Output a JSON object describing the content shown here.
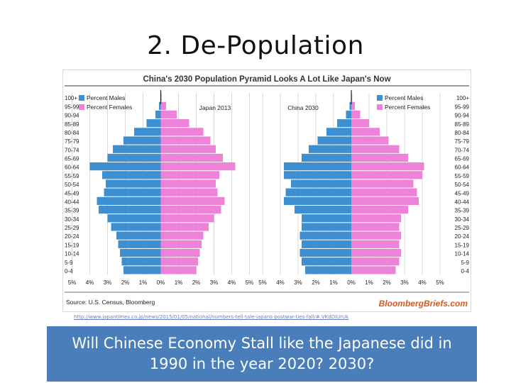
{
  "slide": {
    "title": "2.  De-Population",
    "source_url": "http://www.japantimes.co.jp/news/2015/01/05/national/numbers-tell-tale-japans-postwar-ties-fall/#.VKdDlUrUk",
    "question": "Will Chinese Economy Stall like the Japanese did in 1990 in the year 2020? 2030?"
  },
  "chart_header": {
    "title": "China's 2030 Population Pyramid Looks A Lot Like Japan's Now",
    "source": "Source: U.S. Census, Bloomberg",
    "brand": "BloombergBriefs.com"
  },
  "colors": {
    "males": "#3d8fd1",
    "females": "#ee82d8",
    "grid": "#bfbfbf",
    "question_bg": "#4a7ebb"
  },
  "chart_data": [
    {
      "type": "bar",
      "title": "Japan 2013",
      "categories": [
        "0-4",
        "5-9",
        "10-14",
        "15-19",
        "20-24",
        "25-29",
        "30-34",
        "35-39",
        "40-44",
        "45-49",
        "50-54",
        "55-59",
        "60-64",
        "65-69",
        "70-74",
        "75-79",
        "80-84",
        "85-89",
        "90-94",
        "95-99",
        "100+"
      ],
      "series": [
        {
          "name": "Percent Males",
          "values": [
            2.1,
            2.2,
            2.3,
            2.4,
            2.5,
            2.8,
            3.0,
            3.5,
            3.6,
            3.2,
            3.1,
            3.3,
            4.0,
            3.0,
            2.7,
            2.1,
            1.5,
            0.8,
            0.3,
            0.1,
            0.02
          ]
        },
        {
          "name": "Percent Females",
          "values": [
            2.0,
            2.1,
            2.2,
            2.3,
            2.4,
            2.7,
            3.0,
            3.4,
            3.6,
            3.2,
            3.1,
            3.3,
            4.2,
            3.5,
            3.1,
            2.8,
            2.4,
            1.6,
            0.9,
            0.3,
            0.05
          ]
        }
      ],
      "xlim": [
        -5,
        5
      ],
      "xticks": [
        "5%",
        "4%",
        "3%",
        "2%",
        "1%",
        "0%",
        "1%",
        "2%",
        "3%",
        "4%",
        "5%"
      ],
      "legend": "top-left"
    },
    {
      "type": "bar",
      "title": "China 2030",
      "categories": [
        "0-4",
        "5-9",
        "10-14",
        "15-19",
        "20-24",
        "25-29",
        "30-34",
        "35-39",
        "40-44",
        "45-49",
        "50-54",
        "55-59",
        "60-64",
        "65-69",
        "70-74",
        "75-79",
        "80-84",
        "85-89",
        "90-94",
        "95-99",
        "100+"
      ],
      "series": [
        {
          "name": "Percent Males",
          "values": [
            2.6,
            2.8,
            2.9,
            2.8,
            2.9,
            2.8,
            2.8,
            3.2,
            3.8,
            3.7,
            3.4,
            3.8,
            3.8,
            2.8,
            2.4,
            1.9,
            1.4,
            0.8,
            0.3,
            0.1,
            0.02
          ]
        },
        {
          "name": "Percent Females",
          "values": [
            2.5,
            2.7,
            2.8,
            2.7,
            2.8,
            2.7,
            2.8,
            3.2,
            3.8,
            3.7,
            3.5,
            4.0,
            4.1,
            3.2,
            2.7,
            2.1,
            1.6,
            1.0,
            0.5,
            0.2,
            0.05
          ]
        }
      ],
      "xlim": [
        -5,
        5
      ],
      "xticks": [
        "5%",
        "4%",
        "3%",
        "2%",
        "1%",
        "0%",
        "1%",
        "2%",
        "3%",
        "4%",
        "5%"
      ],
      "legend": "top-right"
    }
  ]
}
